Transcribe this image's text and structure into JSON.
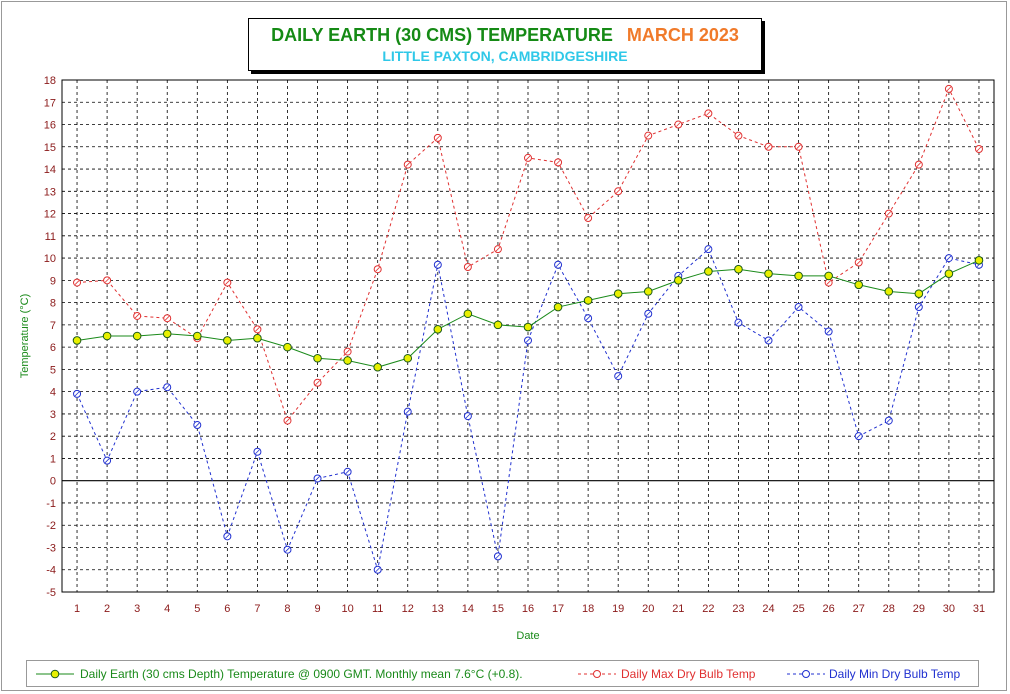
{
  "title": {
    "main": "DAILY EARTH (30 CMS) TEMPERATURE",
    "month": "MARCH 2023",
    "subtitle": "LITTLE PAXTON, CAMBRIDGESHIRE"
  },
  "colors": {
    "title_main": "#158a15",
    "title_month": "#f07a2a",
    "subtitle": "#2fc8e8",
    "earth_line": "#1a8a1a",
    "earth_marker": "#e8f000",
    "max_line": "#e03030",
    "min_line": "#2030d0",
    "axis_text": "#8b1a1a",
    "ylabel_text": "#1a8a1a"
  },
  "chart_data": {
    "type": "line",
    "xlabel": "Date",
    "ylabel": "Temperature (°C)",
    "ylim": [
      -5,
      18
    ],
    "xlim": [
      0.5,
      31.5
    ],
    "grid": true,
    "legend_position": "bottom",
    "x": [
      1,
      2,
      3,
      4,
      5,
      6,
      7,
      8,
      9,
      10,
      11,
      12,
      13,
      14,
      15,
      16,
      17,
      18,
      19,
      20,
      21,
      22,
      23,
      24,
      25,
      26,
      27,
      28,
      29,
      30,
      31
    ],
    "series": [
      {
        "name": "Daily Earth (30 cms Depth) Temperature @ 0900 GMT. Monthly mean 7.6°C (+0.8).",
        "style": "solid",
        "values": [
          6.3,
          6.5,
          6.5,
          6.6,
          6.5,
          6.3,
          6.4,
          6.0,
          5.5,
          5.4,
          5.1,
          5.5,
          6.8,
          7.5,
          7.0,
          6.9,
          7.8,
          8.1,
          8.4,
          8.5,
          9.0,
          9.4,
          9.5,
          9.3,
          9.2,
          9.2,
          8.8,
          8.5,
          8.4,
          9.3,
          9.9
        ]
      },
      {
        "name": "Daily Max Dry Bulb Temp",
        "style": "dashed",
        "values": [
          8.9,
          9.0,
          7.4,
          7.3,
          6.4,
          8.9,
          6.8,
          2.7,
          4.4,
          5.8,
          9.5,
          14.2,
          15.4,
          9.6,
          10.4,
          14.5,
          14.3,
          11.8,
          13.0,
          15.5,
          16.0,
          16.5,
          15.5,
          15.0,
          15.0,
          8.9,
          9.8,
          12.0,
          14.2,
          17.6,
          14.9
        ]
      },
      {
        "name": "Daily Min Dry Bulb Temp",
        "style": "dashed",
        "values": [
          3.9,
          0.9,
          4.0,
          4.2,
          2.5,
          -2.5,
          1.3,
          -3.1,
          0.1,
          0.4,
          -4.0,
          3.1,
          9.7,
          2.9,
          -3.4,
          6.3,
          9.7,
          7.3,
          4.7,
          7.5,
          9.2,
          10.4,
          7.1,
          6.3,
          7.8,
          6.7,
          2.0,
          2.7,
          7.8,
          10.0,
          9.7
        ]
      }
    ]
  }
}
